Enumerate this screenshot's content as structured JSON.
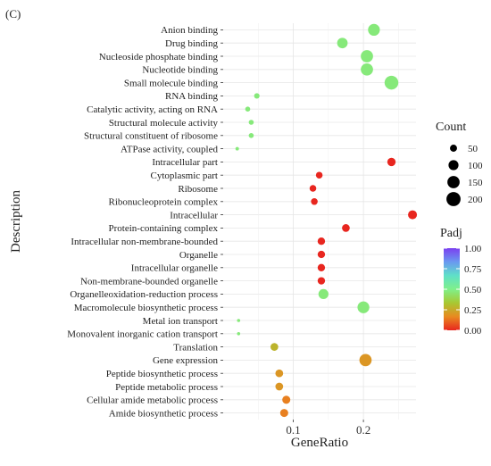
{
  "figure": {
    "panel_label": "(C)"
  },
  "chart_data": {
    "type": "scatter",
    "title": "",
    "xlabel": "GeneRatio",
    "ylabel": "Description",
    "xlim": [
      0.0,
      0.275
    ],
    "x_ticks": [
      0.1,
      0.2
    ],
    "x_tick_labels": [
      "0.1",
      "0.2"
    ],
    "grid": true,
    "legend_position": "right",
    "categories": [
      "Anion binding",
      "Drug binding",
      "Nucleoside phosphate binding",
      "Nucleotide binding",
      "Small molecule binding",
      "RNA binding",
      "Catalytic activity, acting on RNA",
      "Structural molecule activity",
      "Structural constituent of ribosome",
      "ATPase activity, coupled",
      "Intracellular part",
      "Cytoplasmic part",
      "Ribosome",
      "Ribonucleoprotein complex",
      "Intracellular",
      "Protein-containing complex",
      "Intracellular non-membrane-bounded",
      "Organelle",
      "Intracellular organelle",
      "Non-membrane-bounded organelle",
      "Organelleoxidation-reduction process",
      "Macromolecule biosynthetic process",
      "Metal ion transport",
      "Monovalent inorganic cation transport",
      "Translation",
      "Gene expression",
      "Peptide biosynthetic process",
      "Peptide metabolic process",
      "Cellular amide metabolic process",
      "Amide biosynthetic process"
    ],
    "series": [
      {
        "x": [
          0.215,
          0.17,
          0.205,
          0.205,
          0.24,
          0.048,
          0.035,
          0.04,
          0.04,
          0.02,
          0.24,
          0.137,
          0.128,
          0.13,
          0.27,
          0.175,
          0.14,
          0.14,
          0.14,
          0.14,
          0.143,
          0.2,
          0.022,
          0.022,
          0.073,
          0.203,
          0.08,
          0.08,
          0.09,
          0.087
        ],
        "count": [
          140,
          110,
          150,
          150,
          190,
          30,
          25,
          25,
          25,
          12,
          70,
          45,
          45,
          45,
          80,
          60,
          55,
          55,
          55,
          55,
          100,
          140,
          10,
          10,
          60,
          150,
          60,
          60,
          65,
          65
        ],
        "padj": [
          0.47,
          0.47,
          0.47,
          0.47,
          0.47,
          0.47,
          0.47,
          0.47,
          0.47,
          0.47,
          0.0,
          0.0,
          0.0,
          0.0,
          0.0,
          0.0,
          0.0,
          0.0,
          0.0,
          0.0,
          0.47,
          0.47,
          0.47,
          0.47,
          0.28,
          0.2,
          0.2,
          0.2,
          0.15,
          0.15
        ]
      }
    ],
    "size_legend": {
      "title": "Count",
      "values": [
        50,
        100,
        150,
        200
      ],
      "labels": [
        "50",
        "100",
        "150",
        "200"
      ]
    },
    "color_legend": {
      "title": "Padj",
      "min": 0.0,
      "max": 1.0,
      "ticks": [
        1.0,
        0.75,
        0.5,
        0.25,
        0.0
      ],
      "tick_labels": [
        "1.00",
        "0.75",
        "0.50",
        "0.25",
        "0.00"
      ],
      "gradient": [
        "#e8261f",
        "#e88a20",
        "#a8c832",
        "#7ff08a",
        "#5fe0c8",
        "#6a98f0",
        "#7b3ff0"
      ]
    }
  }
}
